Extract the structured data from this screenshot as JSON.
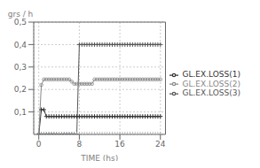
{
  "chart_data": {
    "type": "line",
    "xlabel": "TIME (hs)",
    "ylabel": "grs / h",
    "xlim": [
      -1,
      25
    ],
    "ylim": [
      0,
      0.5
    ],
    "xticks": [
      0,
      8,
      16,
      24
    ],
    "yticks": [
      {
        "value": 0.1,
        "label": "0,1"
      },
      {
        "value": 0.2,
        "label": "0,2"
      },
      {
        "value": 0.3,
        "label": "0,3"
      },
      {
        "value": 0.4,
        "label": "0,4"
      },
      {
        "value": 0.5,
        "label": "0,5"
      }
    ],
    "grid": true,
    "legend": "right",
    "x": [
      0,
      0.5,
      1,
      1.5,
      2,
      2.5,
      3,
      3.5,
      4,
      4.5,
      5,
      5.5,
      6,
      6.5,
      7,
      7.5,
      8,
      8.5,
      9,
      9.5,
      10,
      10.5,
      11,
      11.5,
      12,
      12.5,
      13,
      13.5,
      14,
      14.5,
      15,
      15.5,
      16,
      16.5,
      17,
      17.5,
      18,
      18.5,
      19,
      19.5,
      20,
      20.5,
      21,
      21.5,
      22,
      22.5,
      23,
      23.5,
      24
    ],
    "series": [
      {
        "name": "GL.EX.LOSS(1)",
        "color": "#333333",
        "marker": "+",
        "line_style": "solid",
        "values": [
          0,
          0.11,
          0.11,
          0.08,
          0.08,
          0.08,
          0.08,
          0.08,
          0.08,
          0.08,
          0.08,
          0.08,
          0.08,
          0.08,
          0.08,
          0.08,
          0.08,
          0.08,
          0.08,
          0.08,
          0.08,
          0.08,
          0.08,
          0.08,
          0.08,
          0.08,
          0.08,
          0.08,
          0.08,
          0.08,
          0.08,
          0.08,
          0.08,
          0.08,
          0.08,
          0.08,
          0.08,
          0.08,
          0.08,
          0.08,
          0.08,
          0.08,
          0.08,
          0.08,
          0.08,
          0.08,
          0.08,
          0.08,
          0.08
        ]
      },
      {
        "name": "GL.EX.LOSS(2)",
        "color": "#888888",
        "marker": "o",
        "line_style": "solid",
        "values": [
          0,
          0.22,
          0.245,
          0.245,
          0.245,
          0.245,
          0.245,
          0.245,
          0.245,
          0.245,
          0.245,
          0.245,
          0.245,
          0.235,
          0.225,
          0.225,
          0.225,
          0.225,
          0.225,
          0.225,
          0.225,
          0.225,
          0.245,
          0.245,
          0.245,
          0.245,
          0.245,
          0.245,
          0.245,
          0.245,
          0.245,
          0.245,
          0.245,
          0.245,
          0.245,
          0.245,
          0.245,
          0.245,
          0.245,
          0.245,
          0.245,
          0.245,
          0.245,
          0.245,
          0.245,
          0.245,
          0.245,
          0.245,
          0.245
        ]
      },
      {
        "name": "GL.EX.LOSS(3)",
        "color": "#555555",
        "marker": "+",
        "line_style": "solid",
        "values": [
          0,
          0.0,
          0.0,
          0.0,
          0.0,
          0.0,
          0.0,
          0.0,
          0.0,
          0.0,
          0.0,
          0.0,
          0.0,
          0.0,
          0.0,
          0.0,
          0.4,
          0.4,
          0.4,
          0.4,
          0.4,
          0.4,
          0.4,
          0.4,
          0.4,
          0.4,
          0.4,
          0.4,
          0.4,
          0.4,
          0.4,
          0.4,
          0.4,
          0.4,
          0.4,
          0.4,
          0.4,
          0.4,
          0.4,
          0.4,
          0.4,
          0.4,
          0.4,
          0.4,
          0.4,
          0.4,
          0.4,
          0.4,
          0.4
        ]
      },
      {
        "color": "#aaaaaa",
        "marker": "|",
        "line_style": "none",
        "x": [
          -1,
          0,
          0.5,
          1,
          1.5,
          2,
          2.5,
          3,
          3.5,
          4,
          4.5,
          5,
          5.5,
          6,
          6.5,
          7,
          7.5,
          8,
          8.5,
          9,
          9.5,
          10,
          10.5,
          11,
          11.5,
          12,
          12.5,
          13,
          13.5,
          14,
          14.5,
          15,
          15.5,
          16,
          16.5,
          17,
          17.5,
          18,
          18.5,
          19,
          19.5,
          20,
          20.5,
          21,
          21.5,
          22,
          22.5,
          23,
          23.5,
          24
        ],
        "values": [
          0,
          0,
          0,
          0,
          0,
          0,
          0,
          0,
          0,
          0,
          0,
          0,
          0,
          0,
          0,
          0,
          0,
          0,
          0,
          0,
          0,
          0,
          0,
          0,
          0,
          0,
          0,
          0,
          0,
          0,
          0,
          0,
          0,
          0,
          0,
          0,
          0,
          0,
          0,
          0,
          0,
          0,
          0,
          0,
          0,
          0,
          0,
          0,
          0,
          0
        ]
      }
    ]
  }
}
